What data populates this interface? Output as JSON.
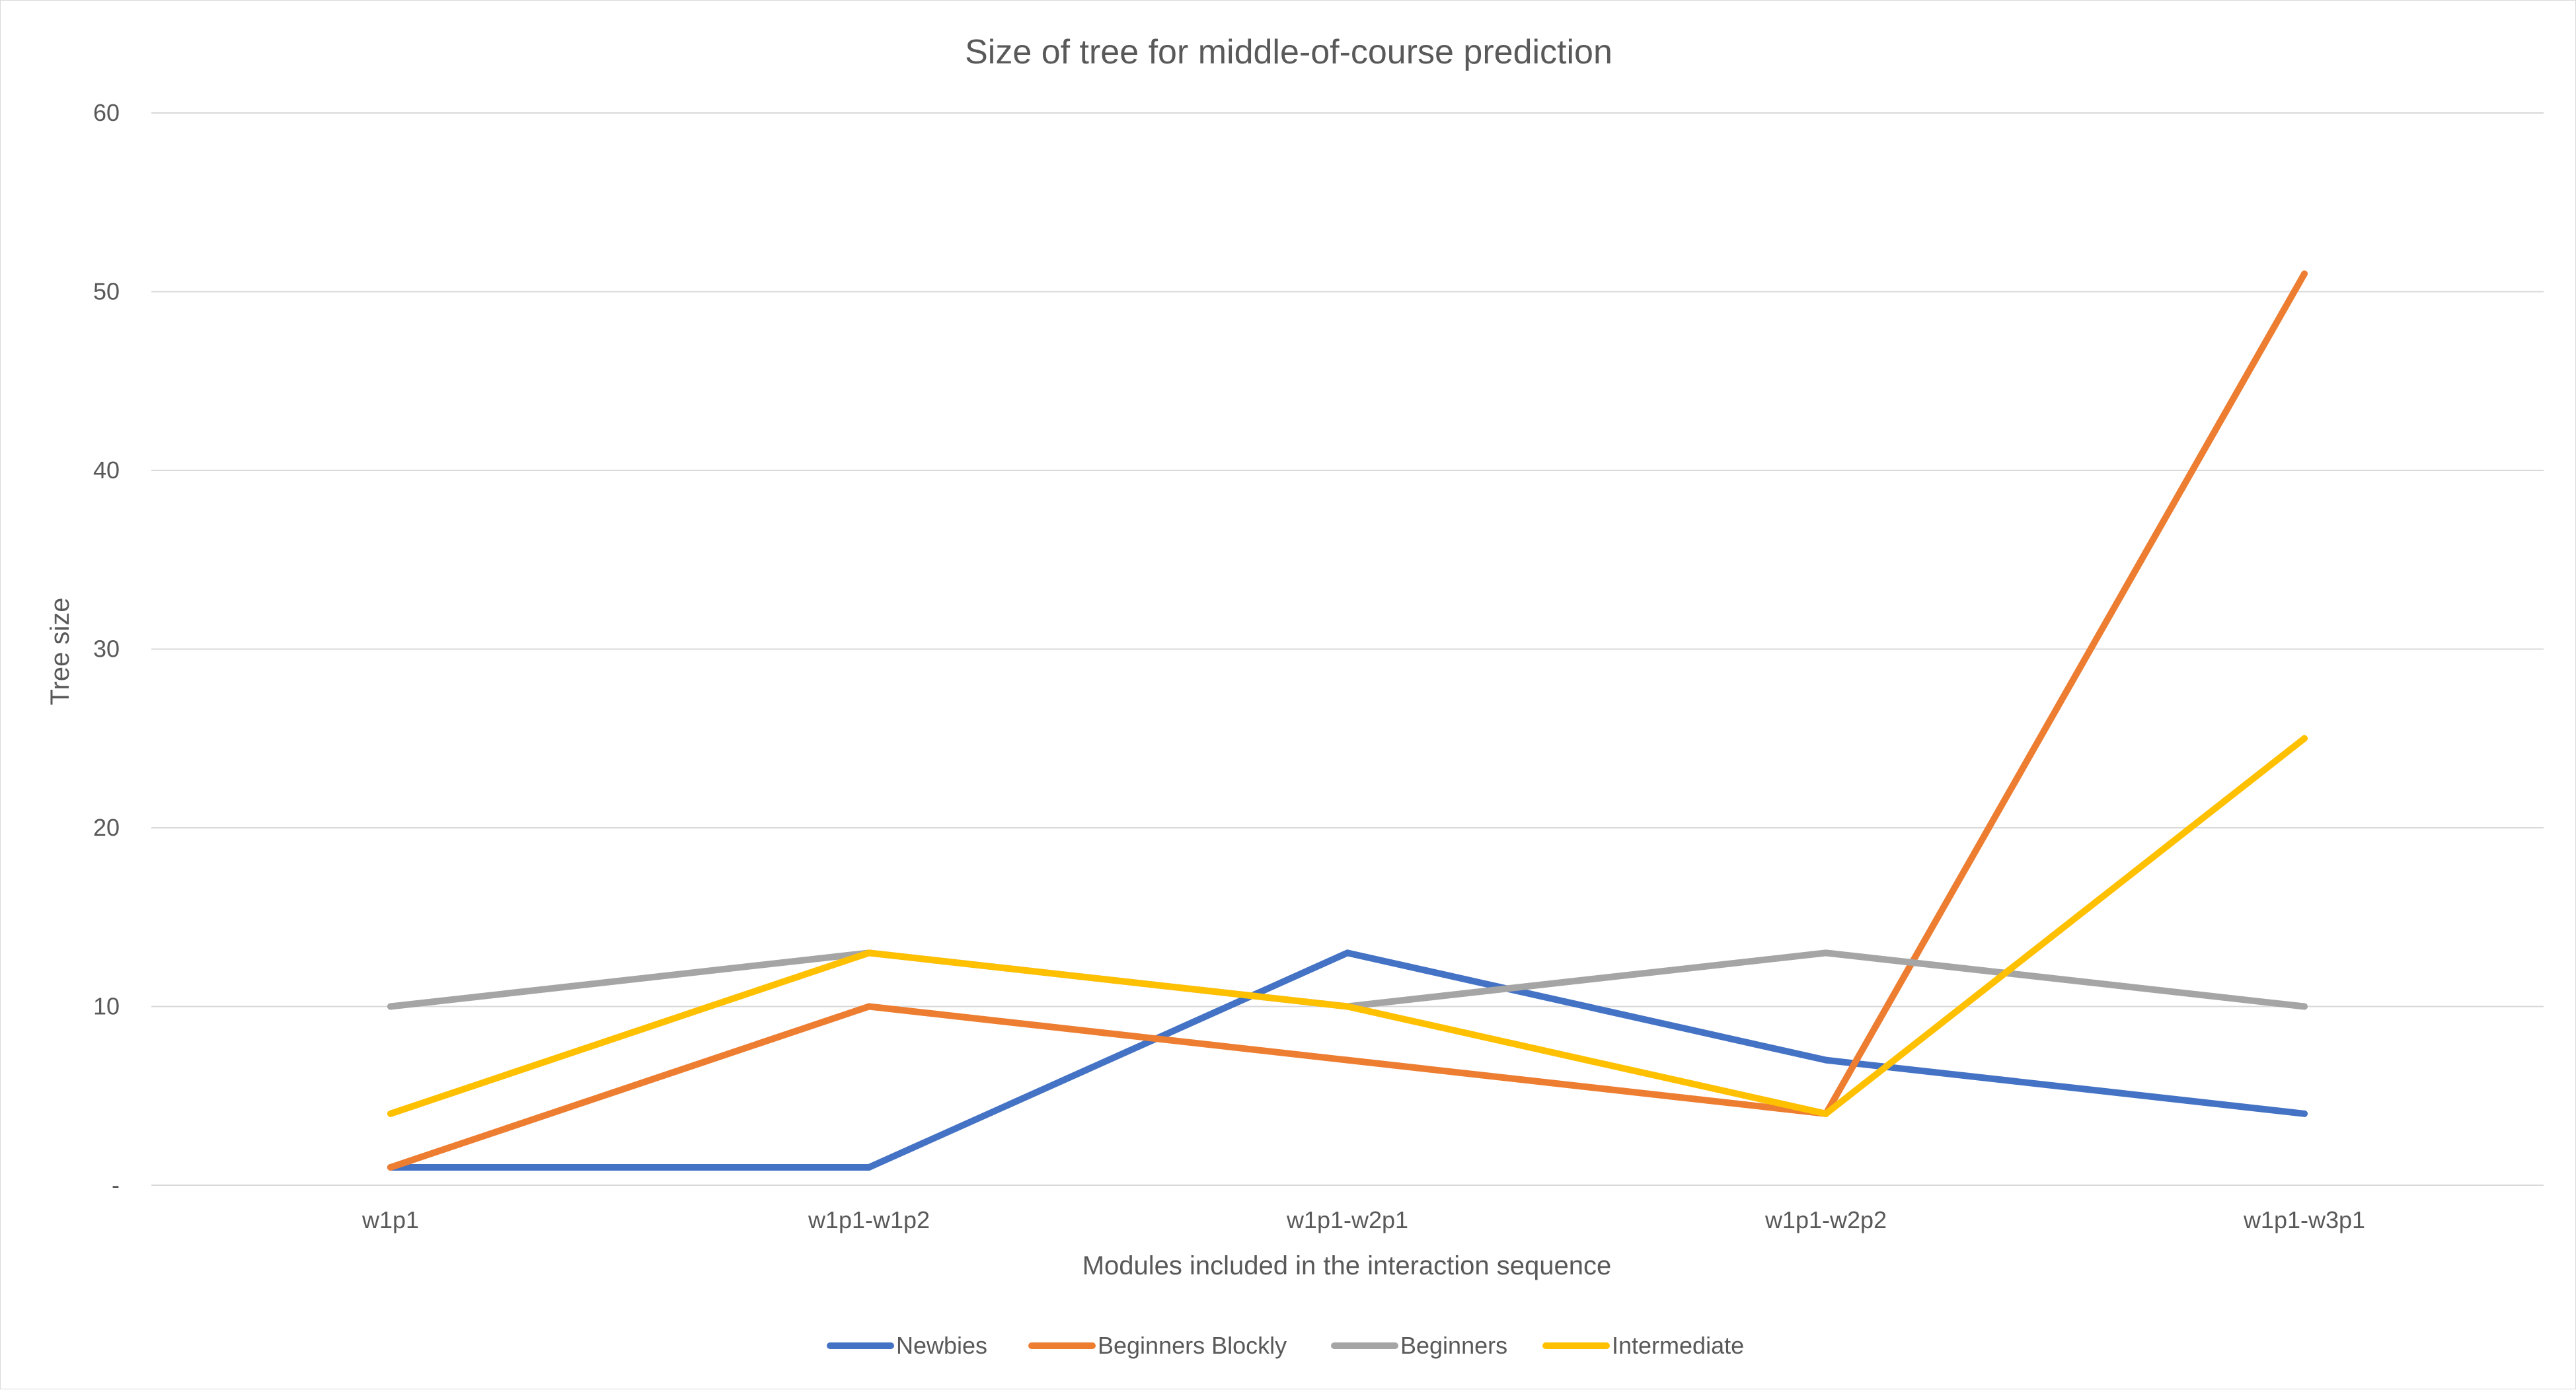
{
  "chart_data": {
    "type": "line",
    "title": "Size of tree for middle-of-course prediction",
    "xlabel": "Modules included in the interaction sequence",
    "ylabel": "Tree size",
    "categories": [
      "w1p1",
      "w1p1-w1p2",
      "w1p1-w2p1",
      "w1p1-w2p2",
      "w1p1-w3p1"
    ],
    "ylim": [
      0,
      60
    ],
    "yticks": [
      0,
      10,
      20,
      30,
      40,
      50,
      60
    ],
    "ytick_labels": [
      "-",
      "10",
      "20",
      "30",
      "40",
      "50",
      "60"
    ],
    "grid": true,
    "legend_position": "bottom",
    "series": [
      {
        "name": "Newbies",
        "color": "#4472C4",
        "values": [
          1,
          1,
          13,
          7,
          4
        ]
      },
      {
        "name": "Beginners Blockly",
        "color": "#ED7D31",
        "values": [
          1,
          10,
          7,
          4,
          51
        ]
      },
      {
        "name": "Beginners",
        "color": "#A5A5A5",
        "values": [
          10,
          13,
          10,
          13,
          10
        ]
      },
      {
        "name": "Intermediate",
        "color": "#FFC000",
        "values": [
          4,
          13,
          10,
          4,
          25
        ]
      }
    ]
  }
}
